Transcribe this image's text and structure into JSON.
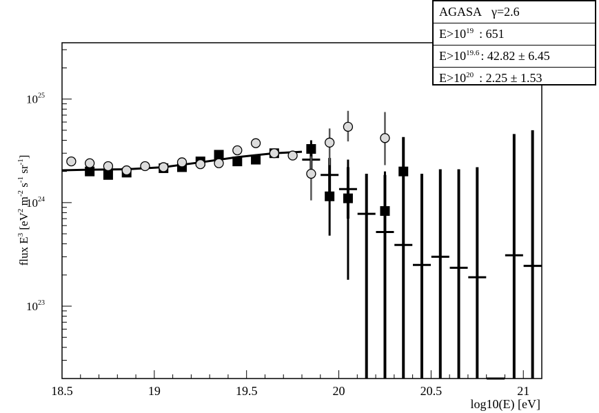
{
  "stats": {
    "title": "AGASA",
    "gamma": "γ=2.6",
    "rows": [
      {
        "label": "E>10",
        "exp": "19",
        "value": ": 651"
      },
      {
        "label": "E>10",
        "exp": "19.6",
        "value": ": 42.82 ± 6.45"
      },
      {
        "label": "E>10",
        "exp": "20",
        "value": ": 2.25 ± 1.53"
      }
    ]
  },
  "chart_data": {
    "type": "scatter",
    "xlabel": "log10(E) [eV]",
    "ylabel": "flux E³ [eV² m⁻² s⁻¹ sr⁻¹]",
    "ylabel_parts": {
      "base": "flux E",
      "e1": "3",
      "unit_open": " [eV",
      "e2": "2",
      "m": " m",
      "e3": "-2",
      "s": " s",
      "e4": "-1",
      "sr": " sr",
      "e5": "-1",
      "close": "]"
    },
    "xlim": [
      18.5,
      21.1
    ],
    "ylim": [
      2e+22,
      3.5e+25
    ],
    "yscale": "log",
    "xticks": [
      18.5,
      19,
      19.5,
      20,
      20.5,
      21
    ],
    "xtick_labels": [
      "18.5",
      "19",
      "19.5",
      "20",
      "20.5",
      "21"
    ],
    "yticks": [
      1e+23,
      1e+24,
      1e+25
    ],
    "ytick_labels": [
      {
        "base": "10",
        "exp": "23"
      },
      {
        "base": "10",
        "exp": "24"
      },
      {
        "base": "10",
        "exp": "25"
      }
    ],
    "fit_line": {
      "x": [
        18.5,
        18.65,
        18.85,
        19.05,
        19.25,
        19.45,
        19.65,
        19.8
      ],
      "y": [
        2.05e+24,
        2.08e+24,
        2.1e+24,
        2.2e+24,
        2.45e+24,
        2.75e+24,
        3e+24,
        3.1e+24
      ]
    },
    "series": [
      {
        "marker": "square-filled",
        "points": [
          {
            "x": 18.65,
            "y": 2e+24
          },
          {
            "x": 18.75,
            "y": 1.85e+24
          },
          {
            "x": 18.85,
            "y": 1.95e+24
          },
          {
            "x": 19.05,
            "y": 2.15e+24
          },
          {
            "x": 19.15,
            "y": 2.2e+24
          },
          {
            "x": 19.25,
            "y": 2.5e+24
          },
          {
            "x": 19.35,
            "y": 2.9e+24
          },
          {
            "x": 19.45,
            "y": 2.5e+24
          },
          {
            "x": 19.55,
            "y": 2.6e+24
          },
          {
            "x": 19.65,
            "y": 3e+24
          },
          {
            "x": 19.85,
            "y": 3.3e+24,
            "ylo": 2.7e+24,
            "yhi": 4e+24
          },
          {
            "x": 19.95,
            "y": 1.15e+24,
            "ylo": 4.8e+23,
            "yhi": 2e+24
          },
          {
            "x": 20.05,
            "y": 1.1e+24,
            "ylo": 1.8e+23,
            "yhi": 2.6e+24
          },
          {
            "x": 20.25,
            "y": 8.3e+23,
            "ylo": 2e+23,
            "yhi": 2e+24
          },
          {
            "x": 20.35,
            "y": 2e+24,
            "ylo": 9e+23,
            "yhi": 4e+24
          }
        ]
      },
      {
        "marker": "circle-open",
        "points": [
          {
            "x": 18.55,
            "y": 2.5e+24
          },
          {
            "x": 18.65,
            "y": 2.4e+24
          },
          {
            "x": 18.75,
            "y": 2.25e+24
          },
          {
            "x": 18.85,
            "y": 2.05e+24
          },
          {
            "x": 18.95,
            "y": 2.25e+24
          },
          {
            "x": 19.05,
            "y": 2.2e+24
          },
          {
            "x": 19.15,
            "y": 2.45e+24
          },
          {
            "x": 19.25,
            "y": 2.35e+24
          },
          {
            "x": 19.35,
            "y": 2.4e+24
          },
          {
            "x": 19.45,
            "y": 3.2e+24
          },
          {
            "x": 19.55,
            "y": 3.75e+24
          },
          {
            "x": 19.65,
            "y": 3e+24
          },
          {
            "x": 19.75,
            "y": 2.85e+24
          },
          {
            "x": 19.85,
            "y": 1.9e+24,
            "ylo": 1.05e+24,
            "yhi": 2.8e+24
          },
          {
            "x": 19.95,
            "y": 3.8e+24,
            "ylo": 2.3e+24,
            "yhi": 5.2e+24
          },
          {
            "x": 20.05,
            "y": 5.4e+24,
            "ylo": 3.9e+24,
            "yhi": 7.7e+24
          },
          {
            "x": 20.25,
            "y": 4.2e+24,
            "ylo": 2.3e+24,
            "yhi": 7.5e+24
          }
        ]
      },
      {
        "marker": "hbar",
        "points": [
          {
            "x": 19.85,
            "y": 2.6e+24,
            "ylo": 1.9e+24,
            "yhi": 3.4e+24
          },
          {
            "x": 19.95,
            "y": 1.85e+24,
            "ylo": 1.15e+24,
            "yhi": 2.7e+24
          },
          {
            "x": 20.05,
            "y": 1.35e+24,
            "ylo": 7e+23,
            "yhi": 2.2e+24
          },
          {
            "x": 20.15,
            "y": 7.8e+23,
            "ylo": 2e+22,
            "yhi": 1.9e+24
          },
          {
            "x": 20.25,
            "y": 5.2e+23,
            "ylo": 2e+22,
            "yhi": 1.85e+24
          },
          {
            "x": 20.35,
            "y": 3.9e+23,
            "ylo": 2e+22,
            "yhi": 4.3e+24
          },
          {
            "x": 20.45,
            "y": 2.5e+23,
            "ylo": 2e+22,
            "yhi": 1.9e+24
          },
          {
            "x": 20.55,
            "y": 3e+23,
            "ylo": 2e+22,
            "yhi": 2.1e+24
          },
          {
            "x": 20.65,
            "y": 2.35e+23,
            "ylo": 2e+22,
            "yhi": 2.1e+24
          },
          {
            "x": 20.75,
            "y": 1.9e+23,
            "ylo": 2e+22,
            "yhi": 2.2e+24
          },
          {
            "x": 20.85,
            "y": 2e+22,
            "ylo": 2e+22,
            "yhi": 2e+22
          },
          {
            "x": 20.95,
            "y": 3.1e+23,
            "ylo": 2e+22,
            "yhi": 4.6e+24
          },
          {
            "x": 21.05,
            "y": 2.45e+23,
            "ylo": 2e+22,
            "yhi": 5e+24
          }
        ]
      }
    ]
  }
}
